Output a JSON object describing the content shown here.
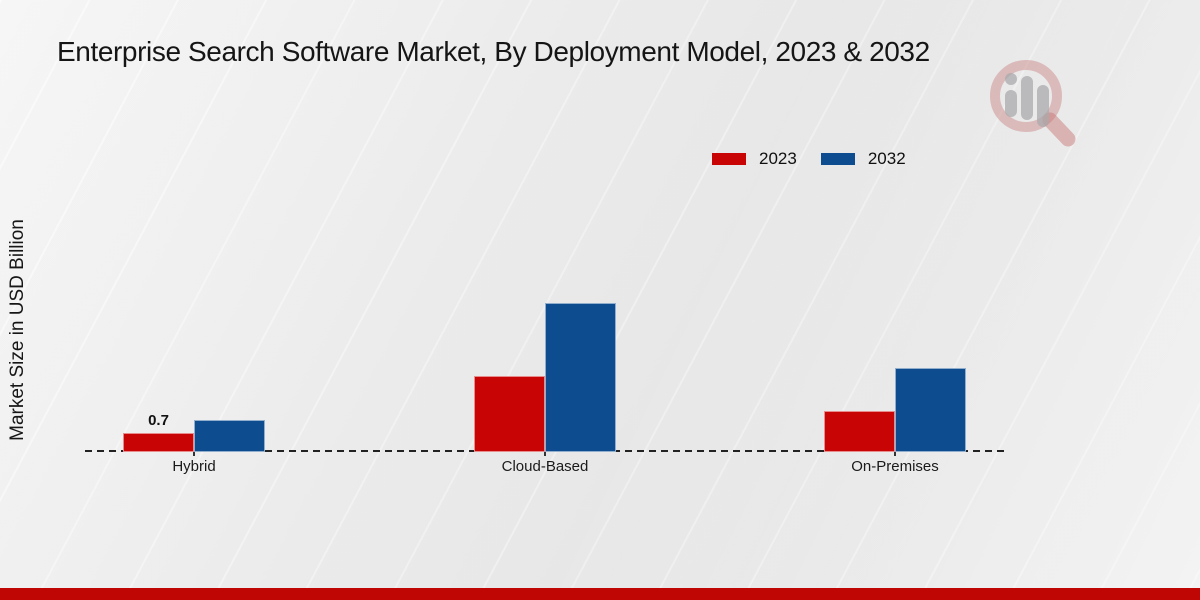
{
  "page": {
    "title": "Enterprise Search Software Market, By Deployment Model, 2023 & 2032"
  },
  "colors": {
    "series_2023": "#c90404",
    "series_2032": "#0d4c8f",
    "bottom_band": "#c00505",
    "baseline": "#222222"
  },
  "legend": {
    "items": [
      {
        "label": "2023",
        "color": "#c90404"
      },
      {
        "label": "2032",
        "color": "#0d4c8f"
      }
    ]
  },
  "logo": {
    "name": "magnifier-bar-chart-watermark"
  },
  "chart_data": {
    "type": "bar",
    "title": "Enterprise Search Software Market, By Deployment Model, 2023 & 2032",
    "xlabel": "",
    "ylabel": "Market Size in USD Billion",
    "categories": [
      "Hybrid",
      "Cloud-Based",
      "On-Premises"
    ],
    "series": [
      {
        "name": "2023",
        "color": "#c90404",
        "values": [
          0.7,
          2.8,
          1.5
        ]
      },
      {
        "name": "2032",
        "color": "#0d4c8f",
        "values": [
          1.2,
          5.5,
          3.1
        ]
      }
    ],
    "annotations": [
      {
        "category": "Hybrid",
        "series": "2023",
        "text": "0.7"
      }
    ],
    "ylim": [
      0,
      6
    ],
    "grid": false,
    "legend_position": "upper right",
    "baseline_style": "dashed",
    "y_axis_ticks_visible": false
  }
}
